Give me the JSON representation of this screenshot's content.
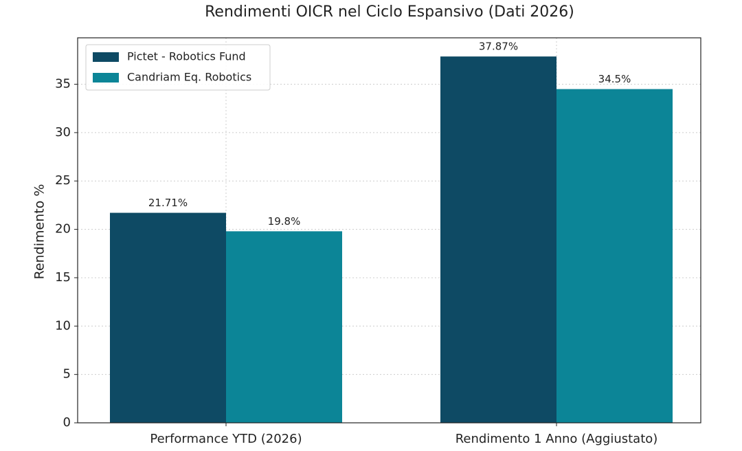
{
  "chart_data": {
    "type": "bar",
    "title": "Rendimenti OICR nel Ciclo Espansivo (Dati 2026)",
    "ylabel": "Rendimento %",
    "categories": [
      "Performance YTD (2026)",
      "Rendimento 1 Anno (Aggiustato)"
    ],
    "series": [
      {
        "name": "Pictet - Robotics Fund",
        "color": "#0e4a64",
        "values": [
          21.71,
          37.87
        ],
        "value_labels": [
          "21.71%",
          "37.87%"
        ]
      },
      {
        "name": "Candriam Eq. Robotics",
        "color": "#0c8597",
        "values": [
          19.8,
          34.5
        ],
        "value_labels": [
          "19.8%",
          "34.5%"
        ]
      }
    ],
    "ylim": [
      0,
      39.8
    ],
    "yticks": [
      0,
      5,
      10,
      15,
      20,
      25,
      30,
      35
    ],
    "grid": true,
    "legend": "upper left"
  }
}
